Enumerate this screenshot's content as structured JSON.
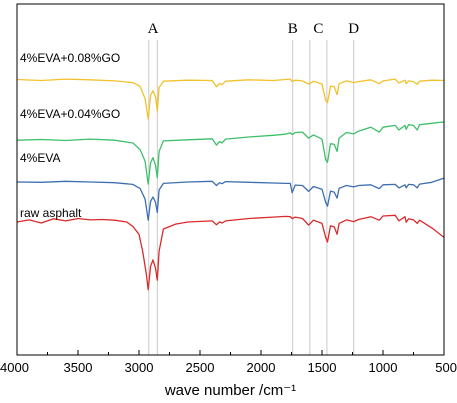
{
  "chart_data": {
    "type": "line",
    "title": "",
    "xlabel": "wave number /cm⁻¹",
    "ylabel": "",
    "xlim": [
      4000,
      500
    ],
    "x_reversed": true,
    "y_axis_ticks": false,
    "x_ticks": [
      4000,
      3500,
      3000,
      2500,
      2000,
      1500,
      1000,
      500
    ],
    "x_tick_labels": [
      "4000",
      "3500",
      "3000",
      "2500",
      "2000",
      "1500",
      "1000",
      "500"
    ],
    "grid": false,
    "legend": "labels placed above each curve",
    "region_markers": [
      {
        "label": "A",
        "positions": [
          2920,
          2850
        ]
      },
      {
        "label": "B",
        "positions": [
          1740
        ]
      },
      {
        "label": "C",
        "positions": [
          1600,
          1460
        ]
      },
      {
        "label": "D",
        "positions": [
          1240
        ]
      }
    ],
    "series": [
      {
        "name": "4%EVA+0.08%GO",
        "color": "#f2c12e",
        "points": [
          [
            4000,
            78.5
          ],
          [
            3800,
            78.2
          ],
          [
            3600,
            78.6
          ],
          [
            3400,
            78.4
          ],
          [
            3200,
            78.1
          ],
          [
            3050,
            77.6
          ],
          [
            2990,
            76.5
          ],
          [
            2950,
            73.0
          ],
          [
            2925,
            67.2
          ],
          [
            2905,
            74.0
          ],
          [
            2885,
            75.3
          ],
          [
            2865,
            73.6
          ],
          [
            2850,
            69.5
          ],
          [
            2835,
            76.2
          ],
          [
            2800,
            78.0
          ],
          [
            2600,
            78.3
          ],
          [
            2400,
            78.2
          ],
          [
            2365,
            76.4
          ],
          [
            2340,
            77.4
          ],
          [
            2320,
            77.0
          ],
          [
            2290,
            78.0
          ],
          [
            2100,
            78.4
          ],
          [
            1900,
            78.2
          ],
          [
            1760,
            78.6
          ],
          [
            1745,
            77.9
          ],
          [
            1720,
            78.3
          ],
          [
            1660,
            78.1
          ],
          [
            1610,
            77.2
          ],
          [
            1570,
            78.0
          ],
          [
            1500,
            77.2
          ],
          [
            1470,
            72.5
          ],
          [
            1455,
            71.9
          ],
          [
            1430,
            76.6
          ],
          [
            1400,
            76.4
          ],
          [
            1376,
            74.2
          ],
          [
            1360,
            77.3
          ],
          [
            1300,
            78.1
          ],
          [
            1240,
            77.6
          ],
          [
            1200,
            77.9
          ],
          [
            1100,
            78.4
          ],
          [
            1030,
            77.3
          ],
          [
            1000,
            78.1
          ],
          [
            900,
            78.6
          ],
          [
            870,
            77.5
          ],
          [
            820,
            78.3
          ],
          [
            810,
            77.3
          ],
          [
            790,
            78.1
          ],
          [
            750,
            77.9
          ],
          [
            720,
            77.1
          ],
          [
            700,
            78.0
          ],
          [
            600,
            78.3
          ],
          [
            500,
            78.2
          ]
        ]
      },
      {
        "name": "4%EVA+0.04%GO",
        "color": "#3fbf6b",
        "points": [
          [
            4000,
            61.2
          ],
          [
            3800,
            61.4
          ],
          [
            3600,
            61.1
          ],
          [
            3400,
            61.5
          ],
          [
            3200,
            61.2
          ],
          [
            3050,
            60.4
          ],
          [
            2990,
            58.5
          ],
          [
            2950,
            55.2
          ],
          [
            2925,
            48.7
          ],
          [
            2905,
            54.8
          ],
          [
            2885,
            56.2
          ],
          [
            2865,
            54.1
          ],
          [
            2850,
            50.5
          ],
          [
            2835,
            58.0
          ],
          [
            2800,
            61.0
          ],
          [
            2600,
            61.3
          ],
          [
            2400,
            61.6
          ],
          [
            2365,
            59.8
          ],
          [
            2340,
            60.8
          ],
          [
            2320,
            60.4
          ],
          [
            2290,
            61.5
          ],
          [
            2100,
            62.1
          ],
          [
            1900,
            62.6
          ],
          [
            1800,
            62.9
          ],
          [
            1760,
            63.3
          ],
          [
            1745,
            62.8
          ],
          [
            1720,
            63.4
          ],
          [
            1660,
            63.5
          ],
          [
            1610,
            61.8
          ],
          [
            1570,
            62.7
          ],
          [
            1500,
            61.5
          ],
          [
            1470,
            55.6
          ],
          [
            1455,
            54.9
          ],
          [
            1430,
            60.2
          ],
          [
            1400,
            60.0
          ],
          [
            1376,
            58.0
          ],
          [
            1360,
            61.8
          ],
          [
            1300,
            63.4
          ],
          [
            1240,
            63.0
          ],
          [
            1200,
            63.8
          ],
          [
            1100,
            64.9
          ],
          [
            1030,
            63.5
          ],
          [
            1000,
            64.9
          ],
          [
            900,
            65.4
          ],
          [
            870,
            64.1
          ],
          [
            820,
            65.4
          ],
          [
            810,
            64.3
          ],
          [
            790,
            65.6
          ],
          [
            750,
            65.4
          ],
          [
            720,
            64.1
          ],
          [
            700,
            65.6
          ],
          [
            600,
            66.0
          ],
          [
            500,
            66.4
          ]
        ]
      },
      {
        "name": "4%EVA",
        "color": "#3d6fb0",
        "points": [
          [
            4000,
            49.3
          ],
          [
            3800,
            49.2
          ],
          [
            3600,
            49.5
          ],
          [
            3400,
            49.3
          ],
          [
            3200,
            49.1
          ],
          [
            3050,
            48.6
          ],
          [
            2990,
            47.4
          ],
          [
            2950,
            44.4
          ],
          [
            2925,
            38.4
          ],
          [
            2905,
            43.8
          ],
          [
            2885,
            45.0
          ],
          [
            2865,
            43.5
          ],
          [
            2850,
            40.6
          ],
          [
            2835,
            47.0
          ],
          [
            2800,
            48.9
          ],
          [
            2600,
            49.3
          ],
          [
            2400,
            49.5
          ],
          [
            2365,
            48.3
          ],
          [
            2340,
            49.1
          ],
          [
            2320,
            48.8
          ],
          [
            2290,
            49.4
          ],
          [
            2100,
            49.2
          ],
          [
            1900,
            49.0
          ],
          [
            1800,
            48.9
          ],
          [
            1760,
            48.9
          ],
          [
            1745,
            46.2
          ],
          [
            1720,
            48.4
          ],
          [
            1660,
            48.3
          ],
          [
            1610,
            46.6
          ],
          [
            1570,
            48.0
          ],
          [
            1500,
            47.2
          ],
          [
            1470,
            43.5
          ],
          [
            1455,
            42.4
          ],
          [
            1430,
            46.7
          ],
          [
            1400,
            46.4
          ],
          [
            1376,
            44.7
          ],
          [
            1360,
            47.5
          ],
          [
            1300,
            48.3
          ],
          [
            1240,
            47.9
          ],
          [
            1200,
            48.3
          ],
          [
            1100,
            48.5
          ],
          [
            1030,
            47.4
          ],
          [
            1000,
            48.5
          ],
          [
            900,
            48.6
          ],
          [
            870,
            47.6
          ],
          [
            820,
            48.5
          ],
          [
            810,
            47.6
          ],
          [
            790,
            48.6
          ],
          [
            750,
            48.5
          ],
          [
            720,
            47.6
          ],
          [
            700,
            48.7
          ],
          [
            600,
            49.2
          ],
          [
            500,
            50.4
          ]
        ]
      },
      {
        "name": "raw asphalt",
        "color": "#d92b2b",
        "points": [
          [
            4000,
            37.9
          ],
          [
            3900,
            38.5
          ],
          [
            3800,
            37.6
          ],
          [
            3700,
            38.8
          ],
          [
            3600,
            38.2
          ],
          [
            3500,
            38.9
          ],
          [
            3400,
            38.5
          ],
          [
            3300,
            38.6
          ],
          [
            3200,
            38.4
          ],
          [
            3100,
            37.9
          ],
          [
            3050,
            36.6
          ],
          [
            3000,
            34.4
          ],
          [
            2970,
            29.5
          ],
          [
            2940,
            23.1
          ],
          [
            2925,
            18.6
          ],
          [
            2905,
            25.3
          ],
          [
            2885,
            27.1
          ],
          [
            2865,
            24.7
          ],
          [
            2850,
            21.3
          ],
          [
            2835,
            29.6
          ],
          [
            2800,
            35.9
          ],
          [
            2700,
            37.3
          ],
          [
            2600,
            37.9
          ],
          [
            2400,
            38.2
          ],
          [
            2365,
            37.1
          ],
          [
            2340,
            37.9
          ],
          [
            2320,
            37.6
          ],
          [
            2290,
            38.2
          ],
          [
            2100,
            38.9
          ],
          [
            1900,
            39.3
          ],
          [
            1800,
            39.5
          ],
          [
            1760,
            39.4
          ],
          [
            1745,
            38.9
          ],
          [
            1720,
            39.3
          ],
          [
            1660,
            38.9
          ],
          [
            1610,
            37.0
          ],
          [
            1570,
            38.4
          ],
          [
            1500,
            37.5
          ],
          [
            1470,
            33.5
          ],
          [
            1455,
            32.2
          ],
          [
            1430,
            36.8
          ],
          [
            1400,
            36.5
          ],
          [
            1376,
            34.4
          ],
          [
            1360,
            37.5
          ],
          [
            1300,
            38.5
          ],
          [
            1240,
            38.0
          ],
          [
            1200,
            38.6
          ],
          [
            1100,
            39.4
          ],
          [
            1030,
            38.4
          ],
          [
            1000,
            39.6
          ],
          [
            900,
            39.8
          ],
          [
            870,
            38.2
          ],
          [
            820,
            39.4
          ],
          [
            810,
            37.8
          ],
          [
            790,
            38.8
          ],
          [
            750,
            38.5
          ],
          [
            720,
            37.5
          ],
          [
            700,
            38.4
          ],
          [
            600,
            36.2
          ],
          [
            500,
            33.5
          ]
        ]
      }
    ]
  }
}
